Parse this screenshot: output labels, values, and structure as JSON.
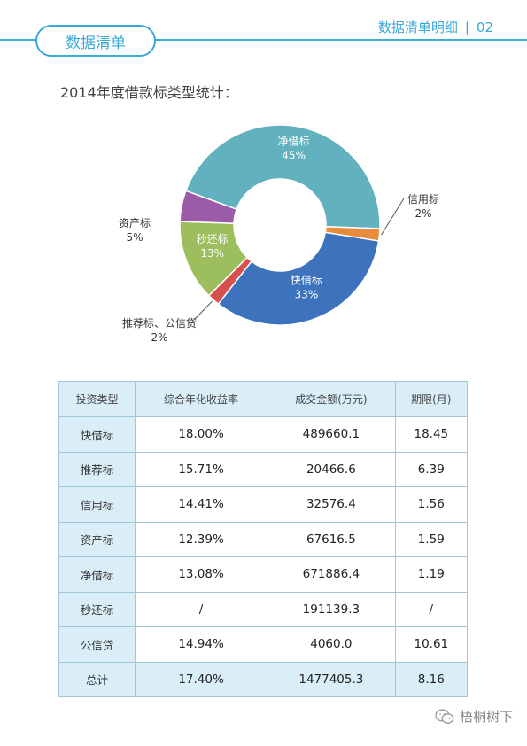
{
  "header": {
    "section_label": "数据清单",
    "right_title": "数据清单明细",
    "separator": "|",
    "page_number": "02"
  },
  "stats_title": "2014年度借款标类型统计：",
  "chart_data": {
    "type": "pie",
    "title": "",
    "donut": true,
    "slices": [
      {
        "name": "净借标",
        "label": "45%",
        "value": 45,
        "color": "#62b1bf"
      },
      {
        "name": "信用标",
        "label": "2%",
        "value": 2,
        "color": "#e88b3a"
      },
      {
        "name": "快借标",
        "label": "33%",
        "value": 33,
        "color": "#3d72bd"
      },
      {
        "name": "推荐标、公信贷",
        "label": "2%",
        "value": 2,
        "color": "#d5504f"
      },
      {
        "name": "秒还标",
        "label": "13%",
        "value": 13,
        "color": "#9cbe5d"
      },
      {
        "name": "资产标",
        "label": "5%",
        "value": 5,
        "color": "#9c5ba9"
      }
    ]
  },
  "table": {
    "headers": [
      "投资类型",
      "综合年化收益率",
      "成交金额(万元)",
      "期限(月)"
    ],
    "rows": [
      [
        "快借标",
        "18.00%",
        "489660.1",
        "18.45"
      ],
      [
        "推荐标",
        "15.71%",
        "20466.6",
        "6.39"
      ],
      [
        "信用标",
        "14.41%",
        "32576.4",
        "1.56"
      ],
      [
        "资产标",
        "12.39%",
        "67616.5",
        "1.59"
      ],
      [
        "净借标",
        "13.08%",
        "671886.4",
        "1.19"
      ],
      [
        "秒还标",
        "/",
        "191139.3",
        "/"
      ],
      [
        "公信贷",
        "14.94%",
        "4060.0",
        "10.61"
      ],
      [
        "总计",
        "17.40%",
        "1477405.3",
        "8.16"
      ]
    ]
  },
  "watermark": {
    "text": "梧桐树下",
    "icon": "wechat-icon"
  },
  "colors": {
    "accent": "#3aa8d8",
    "table_header_bg": "#d9eef7",
    "table_border": "#9fc6d6"
  }
}
